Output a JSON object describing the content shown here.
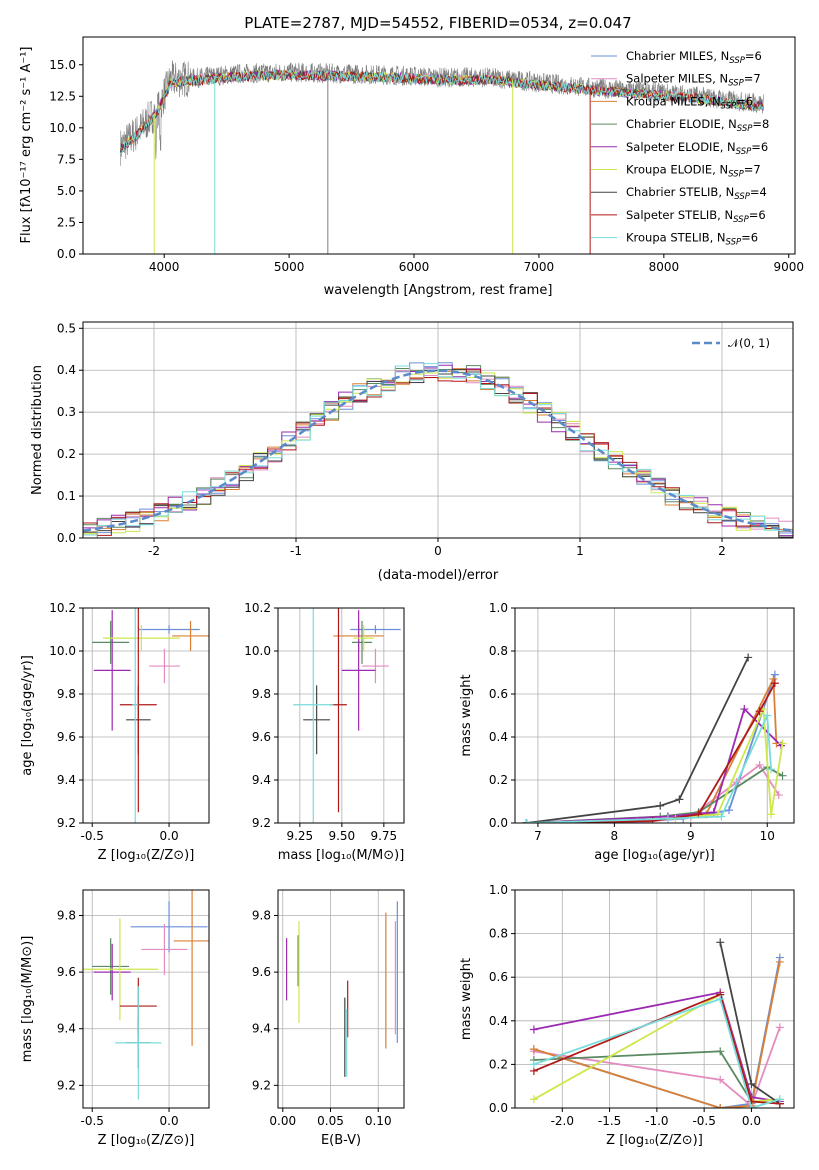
{
  "chart_data": [
    {
      "type": "line",
      "title": "PLATE=2787, MJD=54552, FIBERID=0534, z=0.047",
      "xlabel": "wavelength [Angstrom, rest frame]",
      "ylabel": "Flux [f_λ 10^-17 erg cm^-2 s^-1 A^-1]",
      "xlim": [
        3350,
        9050
      ],
      "ylim": [
        0,
        17.2
      ],
      "xticks": [
        4000,
        5000,
        6000,
        7000,
        8000,
        9000
      ],
      "yticks": [
        0.0,
        2.5,
        5.0,
        7.5,
        10.0,
        12.5,
        15.0
      ],
      "legend_position": "top-right",
      "continuum_x": [
        3650,
        3800,
        3950,
        4050,
        4300,
        4600,
        5000,
        5400,
        5800,
        6200,
        6600,
        7000,
        7400,
        7800,
        8200,
        8600,
        8800
      ],
      "continuum_y": [
        8.5,
        9.8,
        11.5,
        13.8,
        14.0,
        14.3,
        14.4,
        14.3,
        14.2,
        14.0,
        14.0,
        13.6,
        13.2,
        12.9,
        12.6,
        12.1,
        11.9
      ],
      "series": [
        {
          "name": "Chabrier MILES, N_SSP=6",
          "color": "#6a8fd8"
        },
        {
          "name": "Salpeter MILES, N_SSP=7",
          "color": "#e48bc0"
        },
        {
          "name": "Kroupa MILES, N_SSP=6",
          "color": "#d98036"
        },
        {
          "name": "Chabrier ELODIE, N_SSP=8",
          "color": "#5a8a60"
        },
        {
          "name": "Salpeter ELODIE, N_SSP=6",
          "color": "#9b2ab0"
        },
        {
          "name": "Kroupa ELODIE, N_SSP=7",
          "color": "#cde84a"
        },
        {
          "name": "Chabrier STELIB, N_SSP=4",
          "color": "#444444"
        },
        {
          "name": "Salpeter STELIB, N_SSP=6",
          "color": "#b01818"
        },
        {
          "name": "Kroupa STELIB, N_SSP=6",
          "color": "#79dcdc"
        }
      ]
    },
    {
      "type": "line",
      "xlabel": "(data-model)/error",
      "ylabel": "Normed distribution",
      "xlim": [
        -2.5,
        2.5
      ],
      "ylim": [
        0,
        0.515
      ],
      "xticks": [
        -2,
        -1,
        0,
        1,
        2
      ],
      "yticks": [
        0.0,
        0.1,
        0.2,
        0.3,
        0.4,
        0.5
      ],
      "legend_position": "top-right",
      "legend_label": "𝒩(0, 1)"
    },
    {
      "type": "scatter",
      "xlabel": "Z [log10(Z/Z☉)]",
      "ylabel": "age [log10(age/yr)]",
      "xlim": [
        -0.56,
        0.26
      ],
      "ylim": [
        9.2,
        10.2
      ],
      "xticks": [
        -0.5,
        0.0
      ],
      "yticks": [
        9.2,
        9.4,
        9.6,
        9.8,
        10.0,
        10.2
      ],
      "points": [
        {
          "x": 0.0,
          "y": 10.1,
          "xerr": 0.2,
          "yerr": 0.02
        },
        {
          "x": -0.03,
          "y": 9.93,
          "xerr": 0.1,
          "yerr": 0.08
        },
        {
          "x": 0.14,
          "y": 10.07,
          "xerr": 0.12,
          "yerr": 0.07
        },
        {
          "x": -0.38,
          "y": 10.04,
          "xerr": 0.12,
          "yerr": 0.1
        },
        {
          "x": -0.37,
          "y": 9.91,
          "xerr": 0.12,
          "yerr": 0.28
        },
        {
          "x": -0.18,
          "y": 10.06,
          "xerr": 0.25,
          "yerr": 0.06
        },
        {
          "x": -0.2,
          "y": 9.68,
          "xerr": 0.08,
          "yerr": 0.16
        },
        {
          "x": -0.2,
          "y": 9.75,
          "xerr": 0.12,
          "yerr": 0.5
        },
        {
          "x": -0.22,
          "y": 9.75,
          "xerr": 0.02,
          "yerr": 0.55
        }
      ]
    },
    {
      "type": "scatter",
      "xlabel": "mass [log10(M/M☉)]",
      "xlim": [
        9.12,
        9.87
      ],
      "ylim": [
        9.2,
        10.2
      ],
      "xticks": [
        9.25,
        9.5,
        9.75
      ],
      "yticks": [
        9.2,
        9.4,
        9.6,
        9.8,
        10.0,
        10.2
      ],
      "points": [
        {
          "x": 9.7,
          "y": 10.1,
          "xerr": 0.15,
          "yerr": 0.02
        },
        {
          "x": 9.7,
          "y": 9.93,
          "xerr": 0.08,
          "yerr": 0.08
        },
        {
          "x": 9.6,
          "y": 10.07,
          "xerr": 0.15,
          "yerr": 0.07
        },
        {
          "x": 9.62,
          "y": 10.04,
          "xerr": 0.06,
          "yerr": 0.1
        },
        {
          "x": 9.6,
          "y": 9.91,
          "xerr": 0.1,
          "yerr": 0.28
        },
        {
          "x": 9.63,
          "y": 10.06,
          "xerr": 0.06,
          "yerr": 0.06
        },
        {
          "x": 9.35,
          "y": 9.68,
          "xerr": 0.08,
          "yerr": 0.16
        },
        {
          "x": 9.48,
          "y": 9.75,
          "xerr": 0.05,
          "yerr": 0.5
        },
        {
          "x": 9.33,
          "y": 9.75,
          "xerr": 0.12,
          "yerr": 0.55
        }
      ]
    },
    {
      "type": "line",
      "xlabel": "age  [log10(age/yr)]",
      "ylabel": "mass weight",
      "xlim": [
        6.7,
        10.35
      ],
      "ylim": [
        0,
        1.0
      ],
      "xticks": [
        7,
        8,
        9,
        10
      ],
      "yticks": [
        0.0,
        0.2,
        0.4,
        0.6,
        0.8,
        1.0
      ],
      "series": [
        {
          "x": [
            6.85,
            8.0,
            8.9,
            9.5,
            10.1
          ],
          "y": [
            0.0,
            0.0,
            0.02,
            0.06,
            0.69
          ]
        },
        {
          "x": [
            6.85,
            8.3,
            9.0,
            9.6,
            9.9,
            10.15
          ],
          "y": [
            0.0,
            0.0,
            0.03,
            0.19,
            0.27,
            0.13
          ]
        },
        {
          "x": [
            6.85,
            8.5,
            9.2,
            10.08,
            10.12
          ],
          "y": [
            0.0,
            0.01,
            0.04,
            0.67,
            0.37
          ]
        },
        {
          "x": [
            6.85,
            8.6,
            9.1,
            10.0,
            10.2
          ],
          "y": [
            0.0,
            0.03,
            0.05,
            0.26,
            0.22
          ]
        },
        {
          "x": [
            6.85,
            8.7,
            9.3,
            9.7,
            10.18
          ],
          "y": [
            0.0,
            0.03,
            0.05,
            0.53,
            0.36
          ]
        },
        {
          "x": [
            6.85,
            8.8,
            9.35,
            9.95,
            10.05,
            10.2
          ],
          "y": [
            0.0,
            0.02,
            0.04,
            0.53,
            0.04,
            0.37
          ]
        },
        {
          "x": [
            6.85,
            8.6,
            8.85,
            9.75
          ],
          "y": [
            0.0,
            0.08,
            0.11,
            0.77
          ]
        },
        {
          "x": [
            6.85,
            8.5,
            9.1,
            9.9,
            10.1
          ],
          "y": [
            0.0,
            0.01,
            0.04,
            0.52,
            0.65
          ]
        },
        {
          "x": [
            6.85,
            8.7,
            9.4,
            10.0,
            10.05
          ],
          "y": [
            0.0,
            0.02,
            0.03,
            0.5,
            0.25
          ]
        }
      ]
    },
    {
      "type": "scatter",
      "xlabel": "Z [log10(Z/Z☉)]",
      "ylabel": "mass [log10(M/M☉)]",
      "xlim": [
        -0.56,
        0.26
      ],
      "ylim": [
        9.12,
        9.89
      ],
      "xticks": [
        -0.5,
        0.0
      ],
      "yticks": [
        9.2,
        9.4,
        9.6,
        9.8
      ],
      "points": [
        {
          "x": 0.0,
          "y": 9.76,
          "xerr": 0.25,
          "yerr": 0.09
        },
        {
          "x": -0.03,
          "y": 9.68,
          "xerr": 0.15,
          "yerr": 0.09
        },
        {
          "x": 0.15,
          "y": 9.71,
          "xerr": 0.12,
          "yerr": 0.37
        },
        {
          "x": -0.38,
          "y": 9.62,
          "xerr": 0.12,
          "yerr": 0.1
        },
        {
          "x": -0.37,
          "y": 9.6,
          "xerr": 0.12,
          "yerr": 0.1
        },
        {
          "x": -0.32,
          "y": 9.61,
          "xerr": 0.25,
          "yerr": 0.18
        },
        {
          "x": -0.2,
          "y": 9.35,
          "xerr": 0.08,
          "yerr": 0.09
        },
        {
          "x": -0.2,
          "y": 9.48,
          "xerr": 0.12,
          "yerr": 0.1
        },
        {
          "x": -0.2,
          "y": 9.35,
          "xerr": 0.15,
          "yerr": 0.2
        }
      ]
    },
    {
      "type": "scatter",
      "xlabel": "E(B-V)",
      "xlim": [
        -0.005,
        0.127
      ],
      "ylim": [
        9.12,
        9.89
      ],
      "xticks": [
        0.0,
        0.05,
        0.1
      ],
      "yticks": [
        9.2,
        9.4,
        9.6,
        9.8
      ],
      "points": [
        {
          "x": 0.12,
          "y": 9.6,
          "xerr": 0,
          "yerr": 0.25
        },
        {
          "x": 0.118,
          "y": 9.58,
          "xerr": 0,
          "yerr": 0.2
        },
        {
          "x": 0.108,
          "y": 9.57,
          "xerr": 0,
          "yerr": 0.24
        },
        {
          "x": 0.016,
          "y": 9.64,
          "xerr": 0,
          "yerr": 0.09
        },
        {
          "x": 0.004,
          "y": 9.61,
          "xerr": 0,
          "yerr": 0.11
        },
        {
          "x": 0.017,
          "y": 9.6,
          "xerr": 0,
          "yerr": 0.18
        },
        {
          "x": 0.065,
          "y": 9.37,
          "xerr": 0,
          "yerr": 0.14
        },
        {
          "x": 0.068,
          "y": 9.47,
          "xerr": 0,
          "yerr": 0.1
        },
        {
          "x": 0.067,
          "y": 9.35,
          "xerr": 0,
          "yerr": 0.12
        }
      ]
    },
    {
      "type": "line",
      "xlabel": "Z [log10(Z/Z☉)]",
      "ylabel": "mass weight",
      "xlim": [
        -2.5,
        0.45
      ],
      "ylim": [
        0,
        1.0
      ],
      "xticks": [
        -2.0,
        -1.5,
        -1.0,
        -0.5,
        0.0
      ],
      "yticks": [
        0.0,
        0.2,
        0.4,
        0.6,
        0.8,
        1.0
      ],
      "series": [
        {
          "x": [
            -2.3,
            -0.33,
            0.0,
            0.3
          ],
          "y": [
            0.27,
            0.0,
            0.02,
            0.69
          ]
        },
        {
          "x": [
            -2.3,
            -0.33,
            0.0,
            0.3
          ],
          "y": [
            0.26,
            0.13,
            0.01,
            0.37
          ]
        },
        {
          "x": [
            -2.3,
            -0.33,
            0.0,
            0.3
          ],
          "y": [
            0.27,
            0.0,
            0.01,
            0.67
          ]
        },
        {
          "x": [
            -2.3,
            -0.33,
            0.0,
            0.3
          ],
          "y": [
            0.22,
            0.26,
            0.03,
            0.02
          ]
        },
        {
          "x": [
            -2.3,
            -0.33,
            0.0,
            0.3
          ],
          "y": [
            0.36,
            0.53,
            0.05,
            0.03
          ]
        },
        {
          "x": [
            -2.3,
            -0.33,
            0.0,
            0.3
          ],
          "y": [
            0.04,
            0.52,
            0.03,
            0.04
          ]
        },
        {
          "x": [
            -0.33,
            0.0,
            0.3
          ],
          "y": [
            0.76,
            0.11,
            0.02
          ]
        },
        {
          "x": [
            -2.3,
            -0.33,
            0.0,
            0.3
          ],
          "y": [
            0.17,
            0.52,
            0.03,
            0.02
          ]
        },
        {
          "x": [
            -2.3,
            -0.33,
            0.0,
            0.3
          ],
          "y": [
            0.2,
            0.5,
            0.0,
            0.04
          ]
        }
      ]
    }
  ]
}
